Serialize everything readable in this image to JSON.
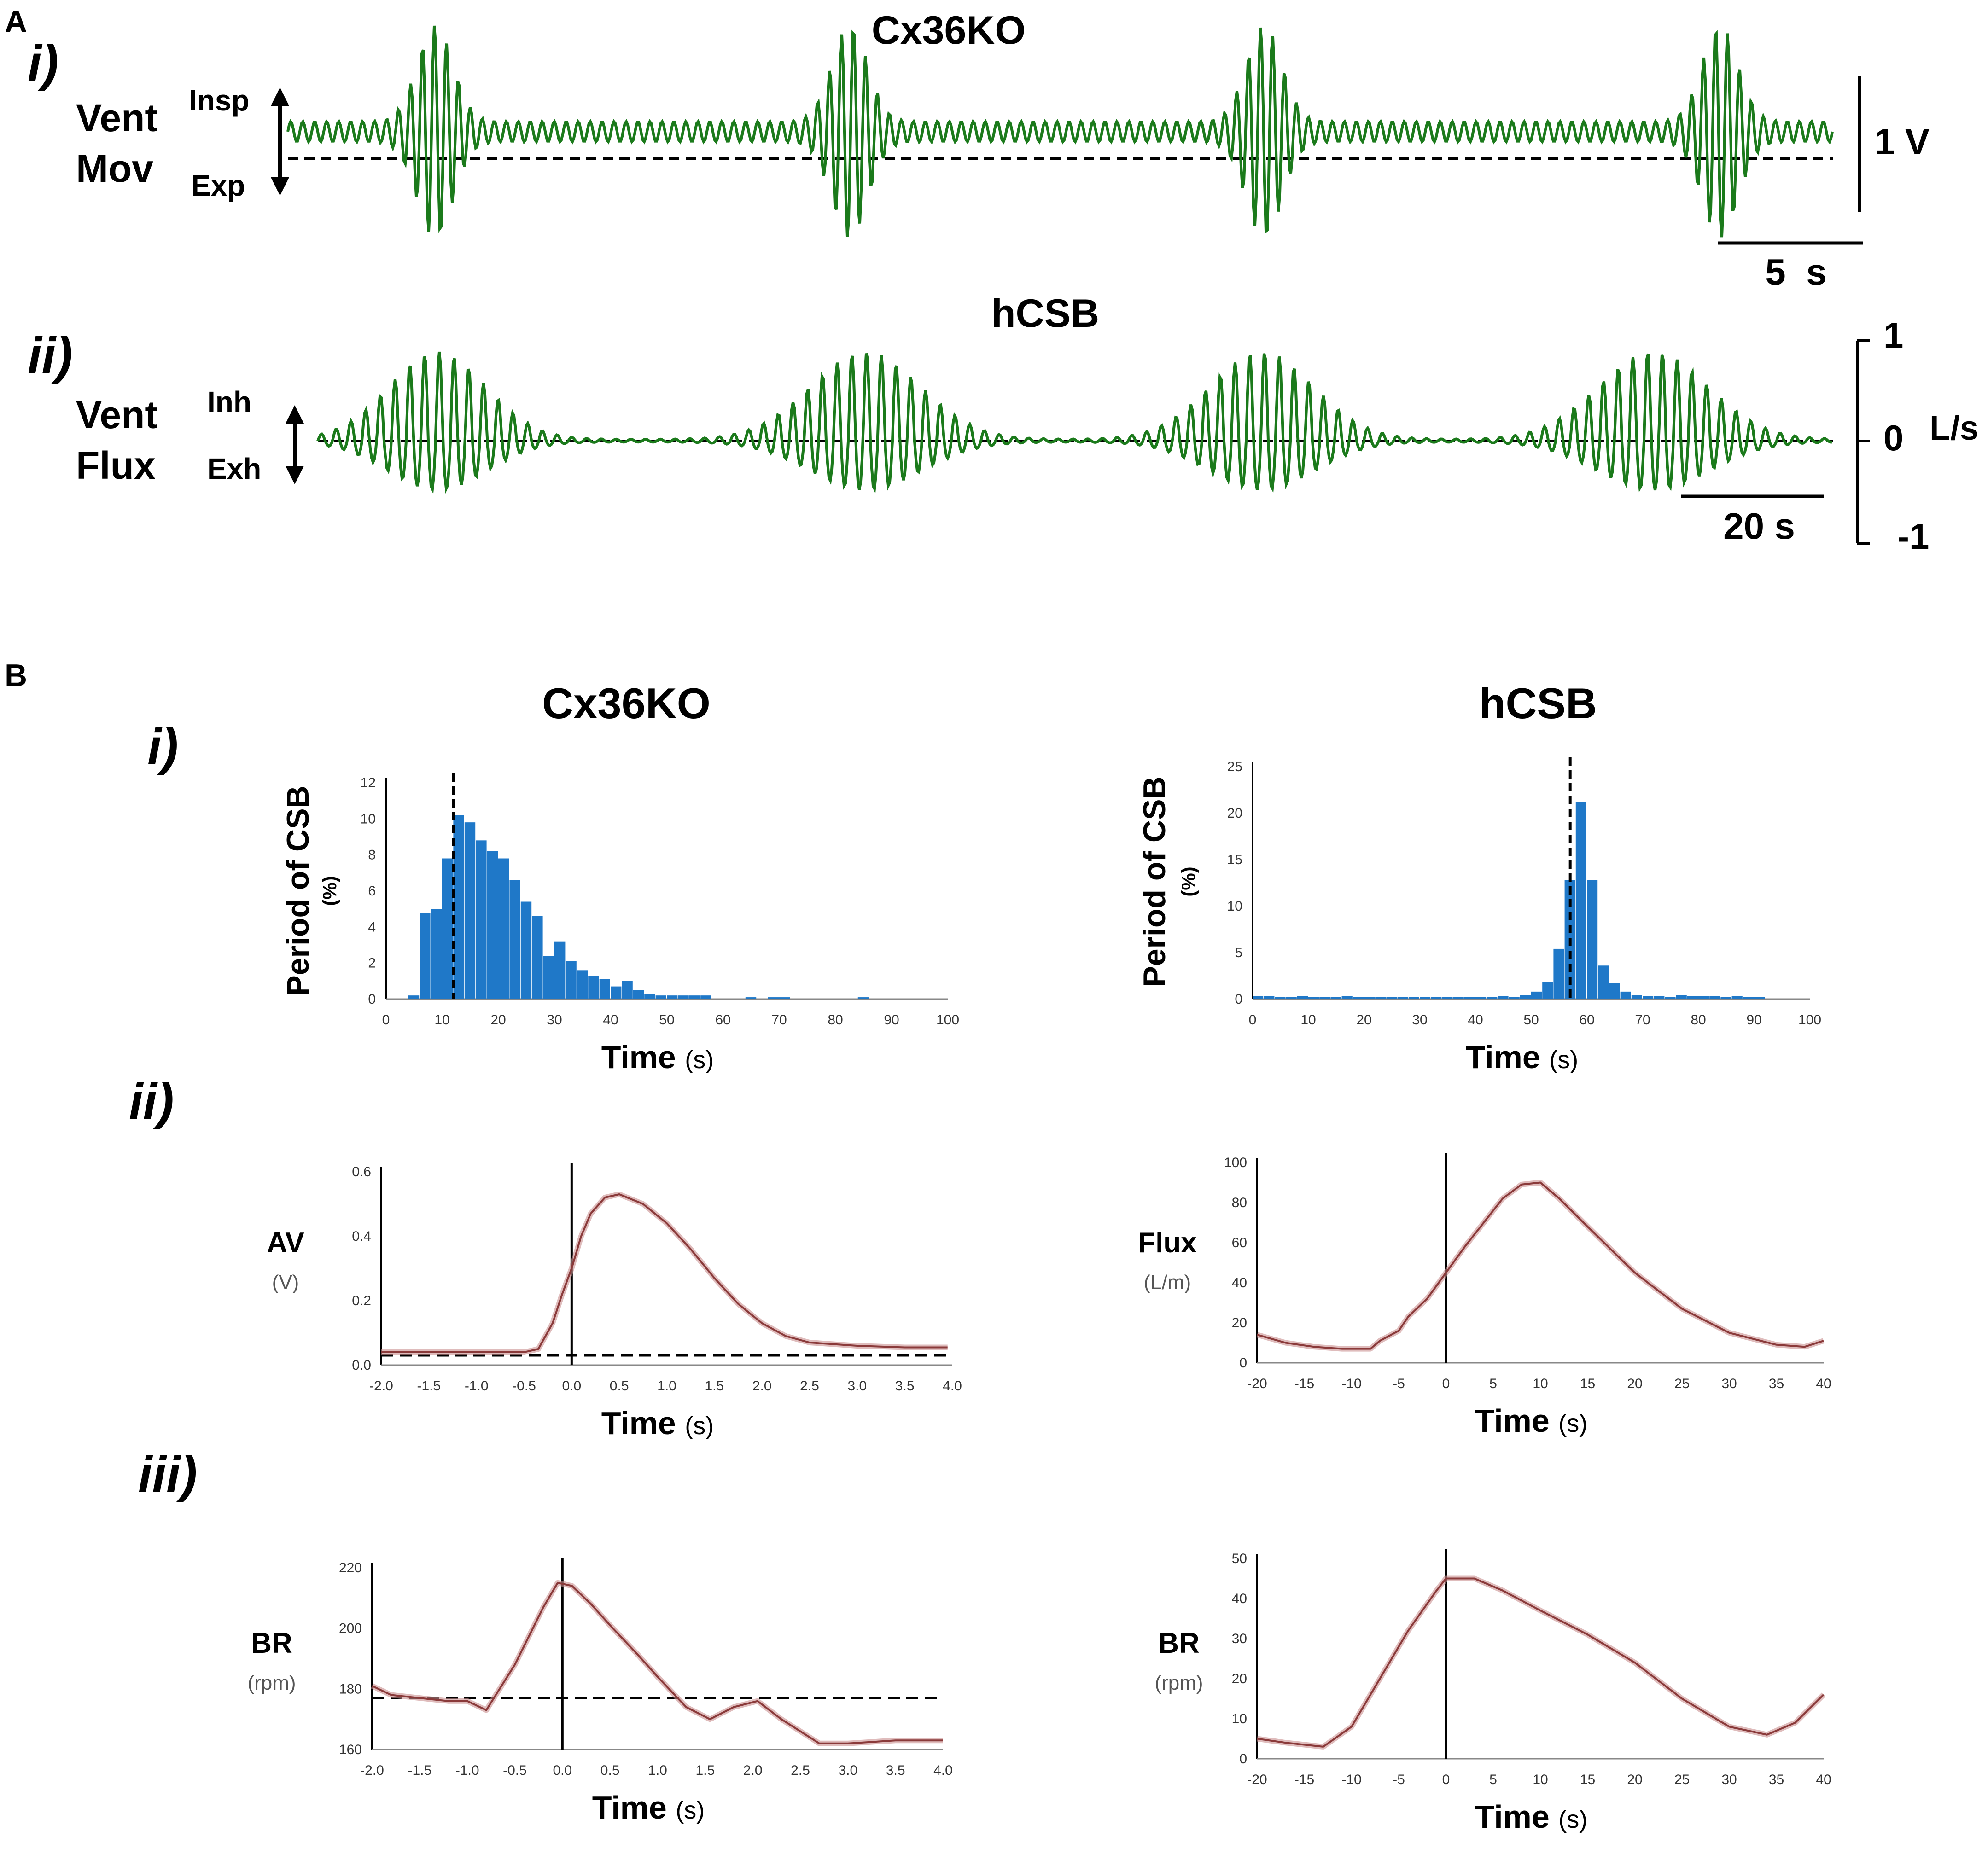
{
  "colors": {
    "trace": "#1b7a1b",
    "bar": "#1f78c8",
    "curve": "#8a3a3a",
    "curve_light": "#c98f8f",
    "axis": "#000000"
  },
  "panel_a": {
    "label": "A",
    "row_i": {
      "roman": "i)",
      "title": "Cx36KO",
      "ylabel_top": "Vent",
      "ylabel_bottom": "Mov",
      "up_label": "Insp",
      "down_label": "Exp",
      "vscale_label": "1 V",
      "hscale_label": "5  s"
    },
    "row_ii": {
      "roman": "ii)",
      "title": "hCSB",
      "ylabel_top": "Vent",
      "ylabel_bottom": "Flux",
      "up_label": "Inh",
      "down_label": "Exh",
      "tick_top": "1",
      "tick_mid": "0",
      "tick_bottom": "-1",
      "unit": "L/s",
      "hscale_label": "20 s"
    }
  },
  "panel_b": {
    "label": "B",
    "col_left_title": "Cx36KO",
    "col_right_title": "hCSB",
    "row_i": "i)",
    "row_ii": "ii)",
    "row_iii": "iii)"
  },
  "chart_data": [
    {
      "id": "bi_left",
      "type": "bar",
      "title": "Cx36KO",
      "ylabel": "Period of CSB",
      "yunit": "(%)",
      "xlabel": "Time",
      "xunit": "(s)",
      "xlim": [
        0,
        100
      ],
      "ylim": [
        0,
        12
      ],
      "xticks": [
        0,
        10,
        20,
        30,
        40,
        50,
        60,
        70,
        80,
        90,
        100
      ],
      "yticks": [
        0,
        2,
        4,
        6,
        8,
        10,
        12
      ],
      "bin_width": 2,
      "bin_starts": [
        4,
        6,
        8,
        10,
        12,
        14,
        16,
        18,
        20,
        22,
        24,
        26,
        28,
        30,
        32,
        34,
        36,
        38,
        40,
        42,
        44,
        46,
        48,
        50,
        52,
        54,
        56,
        64,
        68,
        70,
        84
      ],
      "values": [
        0.2,
        4.8,
        5.0,
        7.8,
        10.2,
        9.8,
        8.8,
        8.2,
        7.8,
        6.6,
        5.4,
        4.6,
        2.4,
        3.2,
        2.1,
        1.6,
        1.3,
        1.1,
        0.7,
        1.0,
        0.5,
        0.3,
        0.2,
        0.2,
        0.2,
        0.2,
        0.2,
        0.1,
        0.1,
        0.1,
        0.1
      ],
      "mean_line": 12
    },
    {
      "id": "bi_right",
      "type": "bar",
      "title": "hCSB",
      "ylabel": "Period of CSB",
      "yunit": "(%)",
      "xlabel": "Time",
      "xunit": "(s)",
      "xlim": [
        0,
        100
      ],
      "ylim": [
        0,
        25
      ],
      "xticks": [
        0,
        10,
        20,
        30,
        40,
        50,
        60,
        70,
        80,
        90,
        100
      ],
      "yticks": [
        0,
        5,
        10,
        15,
        20,
        25
      ],
      "bin_width": 2,
      "bin_starts": [
        0,
        2,
        4,
        6,
        8,
        10,
        12,
        14,
        16,
        18,
        20,
        22,
        24,
        26,
        28,
        30,
        32,
        34,
        36,
        38,
        40,
        42,
        44,
        46,
        48,
        50,
        52,
        54,
        56,
        58,
        60,
        62,
        64,
        66,
        68,
        70,
        72,
        74,
        76,
        78,
        80,
        82,
        84,
        86,
        88,
        90
      ],
      "values": [
        0.3,
        0.3,
        0.2,
        0.2,
        0.3,
        0.2,
        0.2,
        0.2,
        0.3,
        0.2,
        0.2,
        0.2,
        0.2,
        0.2,
        0.2,
        0.2,
        0.2,
        0.2,
        0.2,
        0.2,
        0.2,
        0.2,
        0.3,
        0.2,
        0.4,
        0.8,
        1.8,
        5.4,
        12.8,
        21.2,
        12.8,
        3.6,
        1.7,
        0.8,
        0.4,
        0.3,
        0.3,
        0.2,
        0.4,
        0.3,
        0.3,
        0.3,
        0.2,
        0.3,
        0.2,
        0.2
      ],
      "mean_line": 57
    },
    {
      "id": "bii_left",
      "type": "line",
      "ylabel": "AV",
      "yunit": "(V)",
      "xlabel": "Time",
      "xunit": "(s)",
      "xlim": [
        -2.0,
        4.0
      ],
      "ylim": [
        0.0,
        0.6
      ],
      "xticks": [
        -2.0,
        -1.5,
        -1.0,
        -0.5,
        0.0,
        0.5,
        1.0,
        1.5,
        2.0,
        2.5,
        3.0,
        3.5,
        4.0
      ],
      "xtick_labels": [
        "-2.0",
        "-1.5",
        "-1.0",
        "-0.5",
        "0.0",
        "0.5",
        "1.0",
        "1.5",
        "2.0",
        "2.5",
        "3.0",
        "3.5",
        "4.0"
      ],
      "yticks": [
        0.0,
        0.2,
        0.4,
        0.6
      ],
      "ytick_labels": [
        "0.0",
        "0.2",
        "0.4",
        "0.6"
      ],
      "x": [
        -2.0,
        -1.5,
        -1.0,
        -0.5,
        -0.35,
        -0.2,
        -0.1,
        0.0,
        0.1,
        0.2,
        0.35,
        0.5,
        0.75,
        1.0,
        1.25,
        1.5,
        1.75,
        2.0,
        2.25,
        2.5,
        3.0,
        3.5,
        3.95
      ],
      "y": [
        0.04,
        0.04,
        0.04,
        0.04,
        0.05,
        0.13,
        0.22,
        0.3,
        0.4,
        0.47,
        0.52,
        0.53,
        0.5,
        0.44,
        0.36,
        0.27,
        0.19,
        0.13,
        0.09,
        0.07,
        0.06,
        0.055,
        0.055
      ],
      "zero_line": 0.0,
      "baseline": 0.03
    },
    {
      "id": "bii_right",
      "type": "line",
      "ylabel": "Flux",
      "yunit": "(L/m)",
      "xlabel": "Time",
      "xunit": "(s)",
      "xlim": [
        -20,
        40
      ],
      "ylim": [
        0,
        100
      ],
      "xticks": [
        -20,
        -15,
        -10,
        -5,
        0,
        5,
        10,
        15,
        20,
        25,
        30,
        35,
        40
      ],
      "yticks": [
        0,
        20,
        40,
        60,
        80,
        100
      ],
      "x": [
        -20,
        -17,
        -14,
        -11,
        -8,
        -7,
        -5,
        -4,
        -2,
        0,
        2,
        4,
        6,
        8,
        10,
        12,
        15,
        20,
        25,
        30,
        35,
        38,
        40
      ],
      "y": [
        14,
        10,
        8,
        7,
        7,
        11,
        16,
        23,
        32,
        45,
        58,
        70,
        82,
        89,
        90,
        82,
        68,
        45,
        27,
        15,
        9,
        8,
        11
      ],
      "zero_line": 0
    },
    {
      "id": "biii_left",
      "type": "line",
      "ylabel": "BR",
      "yunit": "(rpm)",
      "xlabel": "Time",
      "xunit": "(s)",
      "xlim": [
        -2.0,
        4.0
      ],
      "ylim": [
        160,
        220
      ],
      "xticks": [
        -2.0,
        -1.5,
        -1.0,
        -0.5,
        0.0,
        0.5,
        1.0,
        1.5,
        2.0,
        2.5,
        3.0,
        3.5,
        4.0
      ],
      "xtick_labels": [
        "-2.0",
        "-1.5",
        "-1.0",
        "-0.5",
        "0.0",
        "0.5",
        "1.0",
        "1.5",
        "2.0",
        "2.5",
        "3.0",
        "3.5",
        "4.0"
      ],
      "yticks": [
        160,
        180,
        200,
        220
      ],
      "x": [
        -2.0,
        -1.8,
        -1.5,
        -1.2,
        -1.0,
        -0.8,
        -0.5,
        -0.2,
        -0.05,
        0.1,
        0.3,
        0.5,
        0.8,
        1.0,
        1.3,
        1.55,
        1.8,
        2.05,
        2.3,
        2.7,
        3.0,
        3.5,
        4.0
      ],
      "y": [
        181,
        178,
        177,
        176,
        176,
        173,
        188,
        207,
        215,
        214,
        208,
        201,
        191,
        184,
        174,
        170,
        174,
        176,
        170,
        162,
        162,
        163,
        163
      ],
      "zero_line": 0.0,
      "baseline": 177
    },
    {
      "id": "biii_right",
      "type": "line",
      "ylabel": "BR",
      "yunit": "(rpm)",
      "xlabel": "Time",
      "xunit": "(s)",
      "xlim": [
        -20,
        40
      ],
      "ylim": [
        0,
        50
      ],
      "xticks": [
        -20,
        -15,
        -10,
        -5,
        0,
        5,
        10,
        15,
        20,
        25,
        30,
        35,
        40
      ],
      "yticks": [
        0,
        10,
        20,
        30,
        40,
        50
      ],
      "x": [
        -20,
        -17,
        -13,
        -10,
        -7,
        -4,
        -1,
        0,
        3,
        6,
        10,
        15,
        20,
        25,
        30,
        34,
        37,
        40
      ],
      "y": [
        5,
        4,
        3,
        8,
        20,
        32,
        42,
        45,
        45,
        42,
        37,
        31,
        24,
        15,
        8,
        6,
        9,
        16
      ],
      "zero_line": 0
    }
  ]
}
